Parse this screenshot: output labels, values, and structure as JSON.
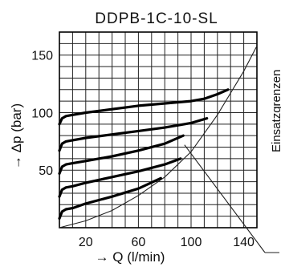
{
  "chart_data": {
    "type": "line",
    "title": "DDPB-1C-10-SL",
    "xlabel": "→ Q (l/min)",
    "ylabel": "→ Δp (bar)",
    "xlim": [
      0,
      150
    ],
    "ylim": [
      0,
      170
    ],
    "xticks": [
      20,
      60,
      100,
      140
    ],
    "yticks": [
      50,
      100,
      150
    ],
    "grid": true,
    "legend": "none",
    "series": [
      {
        "x": [
          0,
          2,
          5,
          10,
          20,
          40,
          60,
          80,
          100,
          110,
          120,
          128
        ],
        "y": [
          90,
          95,
          97,
          98,
          100,
          103,
          106,
          108,
          110,
          112,
          116,
          120
        ]
      },
      {
        "x": [
          0,
          2,
          5,
          10,
          20,
          40,
          60,
          80,
          100,
          112
        ],
        "y": [
          67,
          73,
          75,
          76,
          78,
          81,
          84,
          87,
          91,
          95
        ]
      },
      {
        "x": [
          0,
          2,
          5,
          10,
          20,
          40,
          60,
          80,
          94
        ],
        "y": [
          47,
          53,
          55,
          56,
          58,
          62,
          67,
          73,
          80
        ]
      },
      {
        "x": [
          0,
          2,
          5,
          10,
          20,
          40,
          60,
          80,
          92
        ],
        "y": [
          27,
          33,
          35,
          36,
          39,
          44,
          49,
          55,
          60
        ]
      },
      {
        "x": [
          0,
          2,
          5,
          10,
          20,
          40,
          60,
          77
        ],
        "y": [
          8,
          14,
          16,
          17,
          21,
          27,
          34,
          43
        ]
      }
    ],
    "limit_curve": {
      "label": "Einsatzgrenzen",
      "x": [
        0,
        20,
        40,
        60,
        80,
        100,
        120,
        140,
        150
      ],
      "y": [
        0,
        6,
        15,
        28,
        44,
        66,
        98,
        136,
        158
      ]
    },
    "colors": {
      "series": "#000000",
      "limit": "#222222",
      "grid": "#222222",
      "text": "#111111"
    }
  }
}
